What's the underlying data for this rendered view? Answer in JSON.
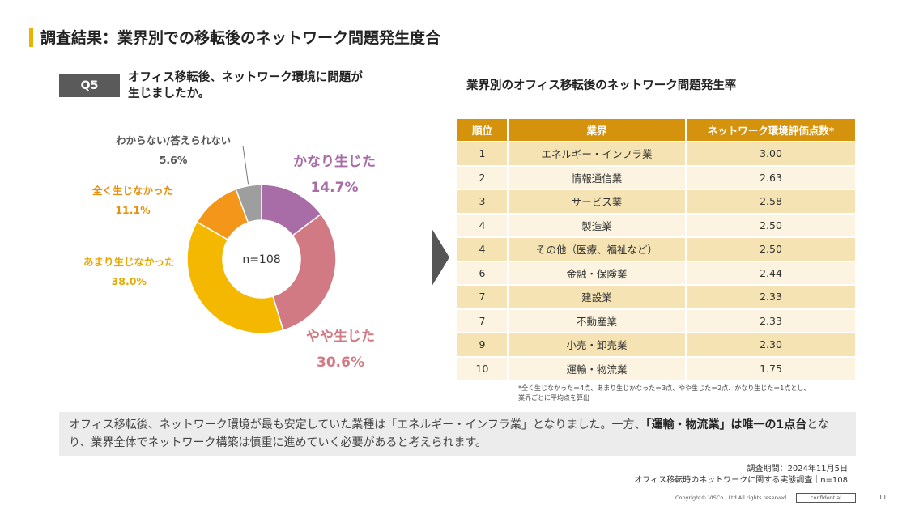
{
  "page": {
    "title": "調査結果：業界別での移転後のネットワーク問題発生度合",
    "question_badge": "Q5",
    "question_line1": "オフィス移転後、ネットワーク環境に問題が",
    "question_line2": "生じましたか。",
    "table_title": "業界別のオフィス移転後のネットワーク問題発生率"
  },
  "chart_data": [
    {
      "type": "pie",
      "center_label": "n=108",
      "slices": [
        {
          "label": "かなり生じた",
          "value": 14.7,
          "display": "14.7%",
          "color": "#a86da6"
        },
        {
          "label": "やや生じた",
          "value": 30.6,
          "display": "30.6%",
          "color": "#d27a84"
        },
        {
          "label": "あまり生じなかった",
          "value": 38.0,
          "display": "38.0%",
          "color": "#f5b800"
        },
        {
          "label": "全く生じなかった",
          "value": 11.1,
          "display": "11.1%",
          "color": "#f4961a"
        },
        {
          "label": "わからない/答えられない",
          "value": 5.6,
          "display": "5.6%",
          "color": "#9e9e9e"
        }
      ]
    },
    {
      "type": "table",
      "columns": [
        "順位",
        "業界",
        "ネットワーク環境評価点数*"
      ],
      "rows": [
        [
          "1",
          "エネルギー・インフラ業",
          "3.00"
        ],
        [
          "2",
          "情報通信業",
          "2.63"
        ],
        [
          "3",
          "サービス業",
          "2.58"
        ],
        [
          "4",
          "製造業",
          "2.50"
        ],
        [
          "4",
          "その他（医療、福祉など）",
          "2.50"
        ],
        [
          "6",
          "金融・保険業",
          "2.44"
        ],
        [
          "7",
          "建設業",
          "2.33"
        ],
        [
          "7",
          "不動産業",
          "2.33"
        ],
        [
          "9",
          "小売・卸売業",
          "2.30"
        ],
        [
          "10",
          "運輸・物流業",
          "1.75"
        ]
      ]
    }
  ],
  "footnote_line1": "*全く生じなかった＝4点、あまり生じかなった＝3点、やや生じた＝2点、かなり生じた＝1点とし、",
  "footnote_line2": "業界ごとに平均点を算出",
  "summary": {
    "part1": "オフィス移転後、ネットワーク環境が最も安定していた業種は「エネルギー・インフラ業」となりました。一方、",
    "part2_bold": "「運輸・物流業」は唯一の1点台",
    "part3": "となり、業界全体でネットワーク構築は慎重に進めていく必要があると考えられます。"
  },
  "source": {
    "line1": "調査期間：2024年11月5日",
    "line2": "オフィス移転時のネットワークに関する実態調査｜n=108"
  },
  "footer": {
    "copyright": "Copyright© VISCo., Ltd.All rights reserved.",
    "confidential": "confidential",
    "page_number": "11"
  }
}
